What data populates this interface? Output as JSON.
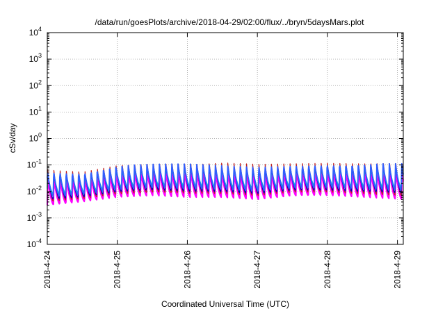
{
  "chart_data": {
    "type": "line",
    "title": "/data/run/goesPlots/archive/2018-04-29/02:00/flux/../bryn/5daysMars.plot",
    "xlabel": "Coordinated Universal Time (UTC)",
    "ylabel": "cSv/day",
    "xlim": [
      "2018-04-24",
      "2018-04-29 02:00"
    ],
    "ylim": [
      0.0001,
      10000
    ],
    "yscale": "log",
    "grid": true,
    "x_ticks": [
      "2018-4-24",
      "2018-4-25",
      "2018-4-26",
      "2018-4-27",
      "2018-4-28",
      "2018-4-29"
    ],
    "y_ticks": [
      {
        "base": "10",
        "exp": "-4"
      },
      {
        "base": "10",
        "exp": "-3"
      },
      {
        "base": "10",
        "exp": "-2"
      },
      {
        "base": "10",
        "exp": "-1"
      },
      {
        "base": "10",
        "exp": "0"
      },
      {
        "base": "10",
        "exp": "1"
      },
      {
        "base": "10",
        "exp": "2"
      },
      {
        "base": "10",
        "exp": "3"
      },
      {
        "base": "10",
        "exp": "4"
      }
    ],
    "series_style": {
      "colors": [
        "#ff00ff",
        "#00cccc",
        "#c02020",
        "#0000c0",
        "#3060ff"
      ],
      "pattern": "sawtooth, ~2.1 h period",
      "upper_envelope": [
        {
          "x": "2018-04-24 00:00",
          "y": 0.07
        },
        {
          "x": "2018-04-24 12:00",
          "y": 0.06
        },
        {
          "x": "2018-04-25 00:00",
          "y": 0.11
        },
        {
          "x": "2018-04-25 12:00",
          "y": 0.13
        },
        {
          "x": "2018-04-26 00:00",
          "y": 0.14
        },
        {
          "x": "2018-04-26 12:00",
          "y": 0.12
        },
        {
          "x": "2018-04-27 00:00",
          "y": 0.11
        },
        {
          "x": "2018-04-27 12:00",
          "y": 0.12
        },
        {
          "x": "2018-04-28 00:00",
          "y": 0.13
        },
        {
          "x": "2018-04-28 12:00",
          "y": 0.13
        },
        {
          "x": "2018-04-29 02:00",
          "y": 0.14
        }
      ],
      "lower_envelope": [
        {
          "x": "2018-04-24 00:00",
          "y": 0.003
        },
        {
          "x": "2018-04-24 12:00",
          "y": 0.004
        },
        {
          "x": "2018-04-25 00:00",
          "y": 0.006
        },
        {
          "x": "2018-04-25 12:00",
          "y": 0.007
        },
        {
          "x": "2018-04-26 00:00",
          "y": 0.006
        },
        {
          "x": "2018-04-26 12:00",
          "y": 0.006
        },
        {
          "x": "2018-04-27 00:00",
          "y": 0.005
        },
        {
          "x": "2018-04-27 12:00",
          "y": 0.007
        },
        {
          "x": "2018-04-28 00:00",
          "y": 0.007
        },
        {
          "x": "2018-04-28 12:00",
          "y": 0.006
        },
        {
          "x": "2018-04-29 02:00",
          "y": 0.005
        }
      ]
    }
  }
}
